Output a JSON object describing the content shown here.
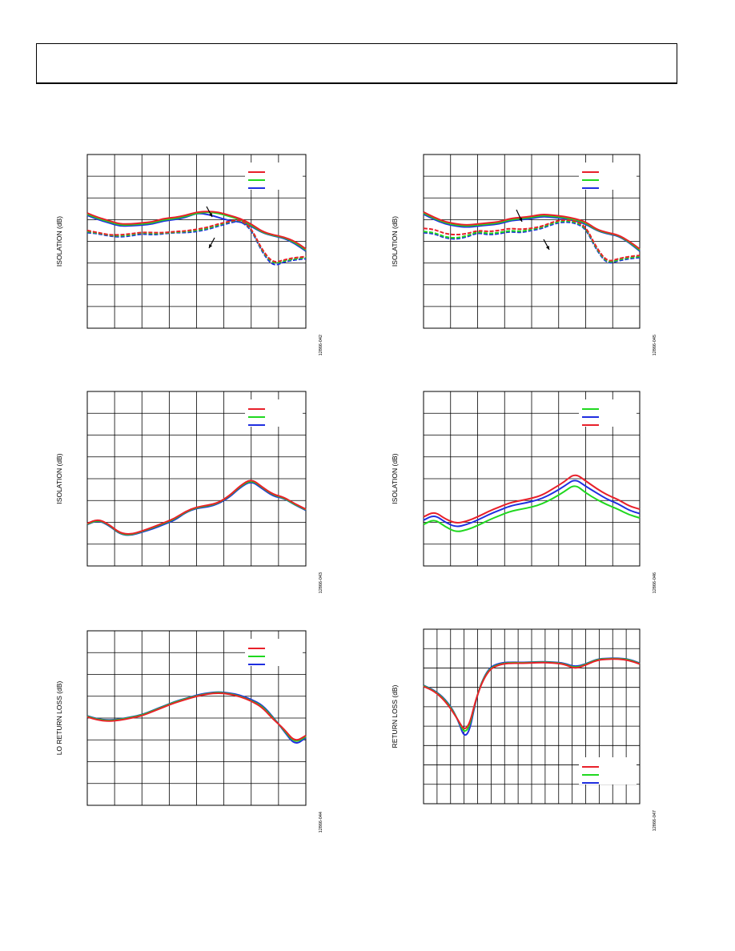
{
  "header": {
    "text": ""
  },
  "chart_data": [
    {
      "type": "line",
      "ylabel": "ISOLATION (dB)",
      "figure_id": "12866-042",
      "grid": true,
      "legend": {
        "placement": "top-right",
        "colors": [
          "#e8202a",
          "#1fd81f",
          "#1f2ee0"
        ]
      },
      "annotations": [
        {
          "type": "arrow"
        },
        {
          "type": "arrow"
        }
      ],
      "x": [
        0,
        0.05,
        0.1,
        0.15,
        0.2,
        0.25,
        0.3,
        0.35,
        0.4,
        0.45,
        0.5,
        0.55,
        0.6,
        0.65,
        0.7,
        0.75,
        0.8,
        0.85,
        0.9,
        0.95,
        1.0
      ],
      "series": [
        {
          "color": "#1f2ee0",
          "dashed": false,
          "values": [
            5.2,
            5.0,
            4.85,
            4.7,
            4.72,
            4.75,
            4.8,
            4.95,
            5.0,
            5.1,
            5.3,
            5.25,
            5.1,
            4.95,
            4.9,
            4.7,
            4.4,
            4.25,
            4.15,
            3.9,
            3.55
          ]
        },
        {
          "color": "#1fd81f",
          "dashed": false,
          "values": [
            5.25,
            5.05,
            4.9,
            4.75,
            4.76,
            4.8,
            4.85,
            5.0,
            5.05,
            5.15,
            5.3,
            5.35,
            5.3,
            5.15,
            5.0,
            4.75,
            4.42,
            4.27,
            4.18,
            3.95,
            3.6
          ]
        },
        {
          "color": "#e8202a",
          "dashed": false,
          "values": [
            5.3,
            5.1,
            4.95,
            4.8,
            4.8,
            4.85,
            4.9,
            5.05,
            5.1,
            5.2,
            5.35,
            5.38,
            5.35,
            5.2,
            5.05,
            4.8,
            4.45,
            4.3,
            4.2,
            4.0,
            3.65
          ]
        },
        {
          "color": "#1f2ee0",
          "dashed": true,
          "values": [
            4.4,
            4.35,
            4.25,
            4.2,
            4.25,
            4.35,
            4.3,
            4.35,
            4.4,
            4.4,
            4.45,
            4.55,
            4.7,
            4.85,
            4.95,
            4.55,
            3.5,
            2.85,
            3.05,
            3.15,
            3.2
          ]
        },
        {
          "color": "#1fd81f",
          "dashed": true,
          "values": [
            4.45,
            4.38,
            4.28,
            4.25,
            4.3,
            4.4,
            4.35,
            4.38,
            4.42,
            4.45,
            4.5,
            4.6,
            4.75,
            4.9,
            5.0,
            4.6,
            3.55,
            2.95,
            3.1,
            3.2,
            3.25
          ]
        },
        {
          "color": "#e8202a",
          "dashed": true,
          "values": [
            4.5,
            4.4,
            4.3,
            4.3,
            4.35,
            4.42,
            4.4,
            4.4,
            4.45,
            4.48,
            4.55,
            4.65,
            4.8,
            4.92,
            5.02,
            4.62,
            3.6,
            3.0,
            3.15,
            3.25,
            3.3
          ]
        }
      ]
    },
    {
      "type": "line",
      "ylabel": "ISOLATION (dB)",
      "figure_id": "12866-045",
      "grid": true,
      "legend": {
        "placement": "top-right",
        "colors": [
          "#e8202a",
          "#1fd81f",
          "#1f2ee0"
        ]
      },
      "annotations": [
        {
          "type": "arrow"
        },
        {
          "type": "arrow"
        }
      ],
      "x": [
        0,
        0.05,
        0.1,
        0.15,
        0.2,
        0.25,
        0.3,
        0.35,
        0.4,
        0.45,
        0.5,
        0.55,
        0.6,
        0.65,
        0.7,
        0.75,
        0.8,
        0.85,
        0.9,
        0.95,
        1.0
      ],
      "series": [
        {
          "color": "#1f2ee0",
          "dashed": false,
          "values": [
            5.25,
            5.0,
            4.8,
            4.7,
            4.65,
            4.7,
            4.75,
            4.8,
            4.95,
            5.0,
            5.05,
            5.15,
            5.1,
            5.05,
            4.95,
            4.8,
            4.5,
            4.35,
            4.25,
            3.95,
            3.55
          ]
        },
        {
          "color": "#1fd81f",
          "dashed": false,
          "values": [
            5.3,
            5.05,
            4.85,
            4.75,
            4.7,
            4.75,
            4.8,
            4.85,
            5.0,
            5.05,
            5.1,
            5.2,
            5.15,
            5.1,
            5.0,
            4.85,
            4.52,
            4.38,
            4.28,
            3.98,
            3.6
          ]
        },
        {
          "color": "#e8202a",
          "dashed": false,
          "values": [
            5.35,
            5.1,
            4.9,
            4.8,
            4.75,
            4.8,
            4.85,
            4.9,
            5.05,
            5.1,
            5.15,
            5.25,
            5.2,
            5.15,
            5.05,
            4.9,
            4.55,
            4.4,
            4.3,
            4.02,
            3.65
          ]
        },
        {
          "color": "#1f2ee0",
          "dashed": true,
          "values": [
            4.4,
            4.35,
            4.15,
            4.1,
            4.2,
            4.4,
            4.3,
            4.35,
            4.45,
            4.4,
            4.5,
            4.6,
            4.8,
            4.9,
            4.85,
            4.6,
            3.6,
            2.95,
            3.1,
            3.2,
            3.25
          ]
        },
        {
          "color": "#1fd81f",
          "dashed": true,
          "values": [
            4.45,
            4.4,
            4.2,
            4.15,
            4.25,
            4.45,
            4.35,
            4.4,
            4.5,
            4.45,
            4.55,
            4.65,
            4.85,
            4.95,
            4.9,
            4.65,
            3.65,
            3.0,
            3.15,
            3.25,
            3.3
          ]
        },
        {
          "color": "#e8202a",
          "dashed": true,
          "values": [
            4.6,
            4.55,
            4.35,
            4.3,
            4.35,
            4.5,
            4.45,
            4.5,
            4.6,
            4.55,
            4.6,
            4.7,
            4.9,
            5.0,
            4.95,
            4.7,
            3.7,
            3.05,
            3.2,
            3.3,
            3.35
          ]
        }
      ]
    },
    {
      "type": "line",
      "ylabel": "ISOLATION (dB)",
      "figure_id": "12866-043",
      "grid": true,
      "legend": {
        "placement": "top-right",
        "colors": [
          "#e8202a",
          "#1fd81f",
          "#1f2ee0"
        ]
      },
      "x": [
        0,
        0.05,
        0.1,
        0.15,
        0.2,
        0.25,
        0.3,
        0.35,
        0.4,
        0.45,
        0.5,
        0.55,
        0.6,
        0.65,
        0.7,
        0.75,
        0.8,
        0.85,
        0.9,
        0.95,
        1.0
      ],
      "series": [
        {
          "color": "#1f2ee0",
          "values": [
            1.9,
            2.1,
            1.85,
            1.45,
            1.4,
            1.55,
            1.7,
            1.9,
            2.1,
            2.45,
            2.65,
            2.7,
            2.85,
            3.15,
            3.6,
            3.9,
            3.55,
            3.2,
            3.1,
            2.8,
            2.55
          ]
        },
        {
          "color": "#1fd81f",
          "values": [
            1.92,
            2.12,
            1.88,
            1.47,
            1.42,
            1.58,
            1.75,
            1.95,
            2.15,
            2.48,
            2.68,
            2.75,
            2.88,
            3.2,
            3.65,
            3.95,
            3.6,
            3.25,
            3.12,
            2.82,
            2.58
          ]
        },
        {
          "color": "#e8202a",
          "values": [
            1.95,
            2.15,
            1.9,
            1.5,
            1.45,
            1.6,
            1.78,
            1.98,
            2.18,
            2.5,
            2.7,
            2.78,
            2.9,
            3.22,
            3.68,
            4.0,
            3.62,
            3.28,
            3.15,
            2.85,
            2.6
          ]
        }
      ]
    },
    {
      "type": "line",
      "ylabel": "ISOLATION (dB)",
      "figure_id": "12866-046",
      "grid": true,
      "legend": {
        "placement": "top-right",
        "colors": [
          "#1fd81f",
          "#1f2ee0",
          "#e8202a"
        ]
      },
      "x": [
        0,
        0.05,
        0.1,
        0.15,
        0.2,
        0.25,
        0.3,
        0.35,
        0.4,
        0.45,
        0.5,
        0.55,
        0.6,
        0.65,
        0.7,
        0.75,
        0.8,
        0.85,
        0.9,
        0.95,
        1.0
      ],
      "series": [
        {
          "color": "#1fd81f",
          "values": [
            1.9,
            2.15,
            1.8,
            1.55,
            1.65,
            1.85,
            2.1,
            2.3,
            2.5,
            2.6,
            2.7,
            2.85,
            3.1,
            3.4,
            3.75,
            3.35,
            3.05,
            2.8,
            2.6,
            2.35,
            2.2
          ]
        },
        {
          "color": "#1f2ee0",
          "values": [
            2.1,
            2.35,
            2.0,
            1.78,
            1.9,
            2.1,
            2.35,
            2.55,
            2.75,
            2.85,
            2.95,
            3.1,
            3.35,
            3.65,
            4.0,
            3.65,
            3.35,
            3.05,
            2.85,
            2.55,
            2.4
          ]
        },
        {
          "color": "#e8202a",
          "values": [
            2.25,
            2.5,
            2.15,
            1.95,
            2.05,
            2.25,
            2.5,
            2.7,
            2.9,
            3.0,
            3.1,
            3.25,
            3.55,
            3.85,
            4.25,
            3.9,
            3.55,
            3.25,
            3.05,
            2.75,
            2.6
          ]
        }
      ]
    },
    {
      "type": "line",
      "ylabel": "LO RETURN LOSS (dB)",
      "figure_id": "12866-044",
      "grid": true,
      "legend": {
        "placement": "top-right",
        "colors": [
          "#e8202a",
          "#1fd81f",
          "#1f2ee0"
        ]
      },
      "x": [
        0,
        0.05,
        0.1,
        0.15,
        0.2,
        0.25,
        0.3,
        0.35,
        0.4,
        0.45,
        0.5,
        0.55,
        0.6,
        0.65,
        0.7,
        0.75,
        0.8,
        0.85,
        0.9,
        0.95,
        1.0
      ],
      "series": [
        {
          "color": "#1f2ee0",
          "values": [
            4.1,
            3.95,
            3.9,
            3.95,
            4.05,
            4.15,
            4.35,
            4.55,
            4.75,
            4.9,
            5.05,
            5.15,
            5.2,
            5.15,
            5.05,
            4.85,
            4.6,
            4.05,
            3.4,
            2.75,
            3.1
          ]
        },
        {
          "color": "#1fd81f",
          "values": [
            4.08,
            3.93,
            3.88,
            3.93,
            4.03,
            4.13,
            4.33,
            4.53,
            4.73,
            4.88,
            5.02,
            5.12,
            5.18,
            5.12,
            5.0,
            4.8,
            4.55,
            4.0,
            3.45,
            2.85,
            3.15
          ]
        },
        {
          "color": "#e8202a",
          "values": [
            4.05,
            3.9,
            3.85,
            3.9,
            4.0,
            4.1,
            4.3,
            4.5,
            4.7,
            4.85,
            5.0,
            5.1,
            5.15,
            5.1,
            4.98,
            4.78,
            4.5,
            3.95,
            3.5,
            2.9,
            3.2
          ]
        }
      ]
    },
    {
      "type": "line",
      "ylabel": "RETURN LOSS (dB)",
      "figure_id": "12866-047",
      "grid": true,
      "legend": {
        "placement": "bottom-right",
        "colors": [
          "#e8202a",
          "#1fd81f",
          "#1f2ee0"
        ]
      },
      "x": [
        0,
        0.05,
        0.1,
        0.15,
        0.2,
        0.25,
        0.3,
        0.35,
        0.4,
        0.45,
        0.5,
        0.55,
        0.6,
        0.65,
        0.7,
        0.75,
        0.8,
        0.85,
        0.9,
        0.95,
        1.0
      ],
      "series": [
        {
          "color": "#1f2ee0",
          "values": [
            6.1,
            5.85,
            5.4,
            4.6,
            3.05,
            5.8,
            7.0,
            7.25,
            7.3,
            7.28,
            7.3,
            7.32,
            7.3,
            7.25,
            7.05,
            7.2,
            7.45,
            7.5,
            7.5,
            7.45,
            7.25
          ]
        },
        {
          "color": "#1fd81f",
          "values": [
            6.08,
            5.82,
            5.35,
            4.55,
            3.35,
            5.78,
            6.95,
            7.2,
            7.28,
            7.26,
            7.28,
            7.3,
            7.28,
            7.22,
            7.0,
            7.18,
            7.43,
            7.48,
            7.48,
            7.43,
            7.22
          ]
        },
        {
          "color": "#e8202a",
          "values": [
            6.05,
            5.8,
            5.3,
            4.5,
            3.55,
            5.75,
            6.9,
            7.18,
            7.25,
            7.24,
            7.26,
            7.28,
            7.26,
            7.2,
            6.95,
            7.15,
            7.4,
            7.46,
            7.46,
            7.4,
            7.2
          ]
        }
      ]
    }
  ]
}
